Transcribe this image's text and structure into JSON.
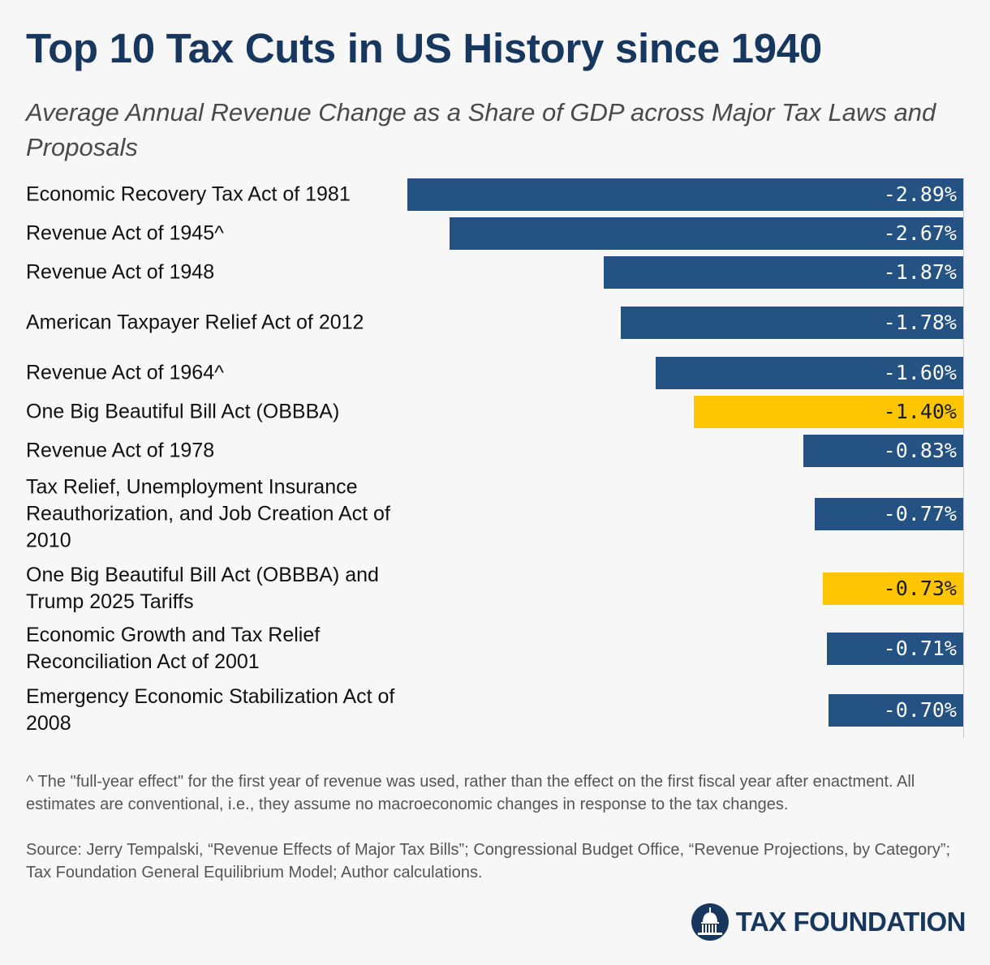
{
  "title": "Top 10 Tax Cuts in US History since 1940",
  "subtitle": "Average Annual Revenue Change as a Share of GDP across Major Tax Laws and Proposals",
  "colors": {
    "bar": "#235283",
    "highlight": "#fec503",
    "title": "#17375e"
  },
  "chart_data": {
    "type": "bar",
    "orientation": "horizontal",
    "categories": [
      "Economic Recovery Tax Act of 1981",
      "Revenue Act of 1945^",
      "Revenue Act of 1948",
      "American Taxpayer Relief Act of 2012",
      "Revenue Act of 1964^",
      "One Big Beautiful Bill Act (OBBBA)",
      "Revenue Act of 1978",
      "Tax Relief, Unemployment Insurance Reauthorization, and Job Creation Act of 2010",
      "One Big Beautiful Bill Act (OBBBA) and Trump 2025 Tariffs",
      "Economic Growth and Tax Relief Reconciliation Act of 2001",
      "Emergency Economic Stabilization Act of 2008"
    ],
    "values": [
      -2.89,
      -2.67,
      -1.87,
      -1.78,
      -1.6,
      -1.4,
      -0.83,
      -0.77,
      -0.73,
      -0.71,
      -0.7
    ],
    "value_labels": [
      "-2.89%",
      "-2.67%",
      "-1.87%",
      "-1.78%",
      "-1.60%",
      "-1.40%",
      "-0.83%",
      "-0.77%",
      "-0.73%",
      "-0.71%",
      "-0.70%"
    ],
    "highlighted": [
      false,
      false,
      false,
      false,
      false,
      true,
      false,
      false,
      true,
      false,
      false
    ]
  },
  "footnote": "^ The \"full-year effect\" for the first year of revenue was used, rather than the effect on the first fiscal year after enactment. All estimates are conventional, i.e., they assume no macroeconomic changes in response to the tax changes.",
  "source": "Source: Jerry Tempalski, “Revenue Effects of Major Tax Bills”; Congressional Budget Office, “Revenue Projections, by Category”; Tax Foundation General Equilibrium Model; Author calculations.",
  "brand": {
    "name": "TAX FOUNDATION",
    "logo_icon": "capitol-dome-icon"
  }
}
